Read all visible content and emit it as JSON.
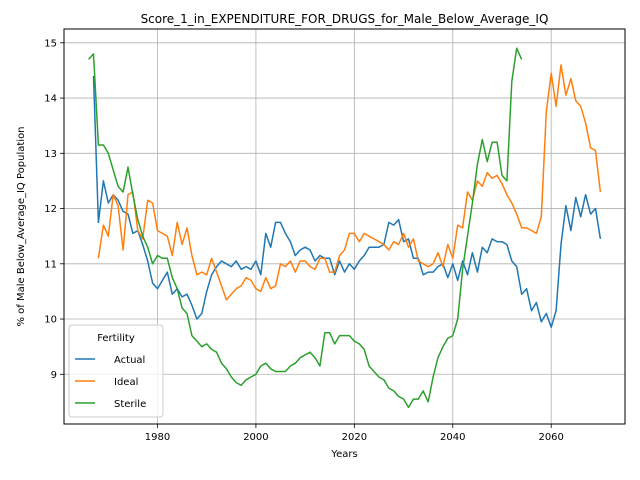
{
  "chart_data": {
    "type": "line",
    "title": "Score_1_in_EXPENDITURE_FOR_DRUGS_for_Male_Below_Average_IQ",
    "xlabel": "Years",
    "ylabel": "% of Male Below_Average_IQ Population",
    "xlim": [
      1961,
      2075
    ],
    "ylim": [
      8.1,
      15.25
    ],
    "xticks": [
      1980,
      2000,
      2020,
      2040,
      2060
    ],
    "yticks": [
      9,
      10,
      11,
      12,
      13,
      14,
      15
    ],
    "grid": true,
    "legend": {
      "title": "Fertility",
      "placement": "bottom-left"
    },
    "series": [
      {
        "name": "Actual",
        "color": "#1f77b4",
        "x": [
          1967,
          1968,
          1969,
          1970,
          1971,
          1972,
          1973,
          1974,
          1975,
          1976,
          1977,
          1978,
          1979,
          1980,
          1981,
          1982,
          1983,
          1984,
          1985,
          1986,
          1987,
          1988,
          1989,
          1990,
          1991,
          1992,
          1993,
          1994,
          1995,
          1996,
          1997,
          1998,
          1999,
          2000,
          2001,
          2002,
          2003,
          2004,
          2005,
          2006,
          2007,
          2008,
          2009,
          2010,
          2011,
          2012,
          2013,
          2014,
          2015,
          2016,
          2017,
          2018,
          2019,
          2020,
          2021,
          2022,
          2023,
          2024,
          2025,
          2026,
          2027,
          2028,
          2029,
          2030,
          2031,
          2032,
          2033,
          2034,
          2035,
          2036,
          2037,
          2038,
          2039,
          2040,
          2041,
          2042,
          2043,
          2044,
          2045,
          2046,
          2047,
          2048,
          2049,
          2050,
          2051,
          2052,
          2053,
          2054,
          2055,
          2056,
          2057,
          2058,
          2059,
          2060,
          2061,
          2062,
          2063,
          2064,
          2065,
          2066,
          2067,
          2068,
          2069,
          2070
        ],
        "y": [
          14.4,
          11.75,
          12.5,
          12.1,
          12.25,
          12.15,
          11.95,
          11.9,
          11.55,
          11.6,
          11.35,
          11.05,
          10.65,
          10.55,
          10.7,
          10.85,
          10.45,
          10.55,
          10.4,
          10.45,
          10.25,
          10.0,
          10.1,
          10.5,
          10.8,
          10.95,
          11.05,
          11.0,
          10.95,
          11.05,
          10.9,
          10.95,
          10.9,
          11.05,
          10.8,
          11.55,
          11.3,
          11.75,
          11.75,
          11.55,
          11.4,
          11.15,
          11.25,
          11.3,
          11.25,
          11.05,
          11.15,
          11.1,
          11.1,
          10.8,
          11.05,
          10.85,
          11.0,
          10.9,
          11.05,
          11.15,
          11.3,
          11.3,
          11.3,
          11.35,
          11.75,
          11.7,
          11.8,
          11.4,
          11.45,
          11.1,
          11.1,
          10.8,
          10.85,
          10.85,
          10.95,
          11.0,
          10.75,
          11.0,
          10.7,
          11.05,
          10.8,
          11.2,
          10.85,
          11.3,
          11.2,
          11.45,
          11.4,
          11.4,
          11.35,
          11.05,
          10.95,
          10.45,
          10.55,
          10.15,
          10.3,
          9.95,
          10.1,
          9.85,
          10.15,
          11.35,
          12.05,
          11.6,
          12.2,
          11.85,
          12.25,
          11.9,
          12.0,
          11.45
        ]
      },
      {
        "name": "Ideal",
        "color": "#ff7f0e",
        "x": [
          1968,
          1969,
          1970,
          1971,
          1972,
          1973,
          1974,
          1975,
          1976,
          1977,
          1978,
          1979,
          1980,
          1981,
          1982,
          1983,
          1984,
          1985,
          1986,
          1987,
          1988,
          1989,
          1990,
          1991,
          1992,
          1993,
          1994,
          1995,
          1996,
          1997,
          1998,
          1999,
          2000,
          2001,
          2002,
          2003,
          2004,
          2005,
          2006,
          2007,
          2008,
          2009,
          2010,
          2011,
          2012,
          2013,
          2014,
          2015,
          2016,
          2017,
          2018,
          2019,
          2020,
          2021,
          2022,
          2023,
          2024,
          2025,
          2026,
          2027,
          2028,
          2029,
          2030,
          2031,
          2032,
          2033,
          2034,
          2035,
          2036,
          2037,
          2038,
          2039,
          2040,
          2041,
          2042,
          2043,
          2044,
          2045,
          2046,
          2047,
          2048,
          2049,
          2050,
          2051,
          2052,
          2053,
          2054,
          2055,
          2056,
          2057,
          2058,
          2059,
          2060,
          2061,
          2062,
          2063,
          2064,
          2065,
          2066,
          2067,
          2068,
          2069,
          2070
        ],
        "y": [
          11.1,
          11.7,
          11.5,
          12.25,
          12.05,
          11.25,
          12.25,
          12.3,
          11.6,
          11.45,
          12.15,
          12.1,
          11.6,
          11.55,
          11.5,
          11.15,
          11.75,
          11.35,
          11.65,
          11.15,
          10.8,
          10.85,
          10.8,
          11.1,
          10.85,
          10.6,
          10.35,
          10.45,
          10.55,
          10.6,
          10.75,
          10.7,
          10.55,
          10.5,
          10.75,
          10.55,
          10.6,
          11.0,
          10.95,
          11.05,
          10.85,
          11.05,
          11.05,
          10.95,
          10.9,
          11.1,
          11.1,
          10.85,
          10.85,
          11.15,
          11.25,
          11.55,
          11.55,
          11.4,
          11.55,
          11.5,
          11.45,
          11.4,
          11.35,
          11.25,
          11.4,
          11.35,
          11.55,
          11.3,
          11.45,
          11.05,
          11.0,
          10.95,
          11.0,
          11.2,
          10.95,
          11.35,
          11.1,
          11.7,
          11.65,
          12.3,
          12.15,
          12.5,
          12.4,
          12.65,
          12.55,
          12.6,
          12.45,
          12.25,
          12.1,
          11.9,
          11.65,
          11.65,
          11.6,
          11.55,
          11.85,
          13.75,
          14.45,
          13.85,
          14.6,
          14.05,
          14.35,
          13.95,
          13.85,
          13.55,
          13.1,
          13.05,
          12.3
        ]
      },
      {
        "name": "Sterile",
        "color": "#2ca02c",
        "x": [
          1966,
          1967,
          1968,
          1969,
          1970,
          1971,
          1972,
          1973,
          1974,
          1975,
          1976,
          1977,
          1978,
          1979,
          1980,
          1981,
          1982,
          1983,
          1984,
          1985,
          1986,
          1987,
          1988,
          1989,
          1990,
          1991,
          1992,
          1993,
          1994,
          1995,
          1996,
          1997,
          1998,
          1999,
          2000,
          2001,
          2002,
          2003,
          2004,
          2005,
          2006,
          2007,
          2008,
          2009,
          2010,
          2011,
          2012,
          2013,
          2014,
          2015,
          2016,
          2017,
          2018,
          2019,
          2020,
          2021,
          2022,
          2023,
          2024,
          2025,
          2026,
          2027,
          2028,
          2029,
          2030,
          2031,
          2032,
          2033,
          2034,
          2035,
          2036,
          2037,
          2038,
          2039,
          2040,
          2041,
          2042,
          2043,
          2044,
          2045,
          2046,
          2047,
          2048,
          2049,
          2050,
          2051,
          2052,
          2053,
          2054
        ],
        "y": [
          14.7,
          14.8,
          13.15,
          13.15,
          13.0,
          12.7,
          12.4,
          12.3,
          12.75,
          12.25,
          11.8,
          11.5,
          11.3,
          11.0,
          11.15,
          11.1,
          11.1,
          10.75,
          10.55,
          10.2,
          10.1,
          9.7,
          9.6,
          9.5,
          9.55,
          9.45,
          9.4,
          9.2,
          9.1,
          8.95,
          8.85,
          8.8,
          8.9,
          8.95,
          9.0,
          9.15,
          9.2,
          9.1,
          9.05,
          9.05,
          9.05,
          9.15,
          9.2,
          9.3,
          9.35,
          9.4,
          9.3,
          9.15,
          9.75,
          9.75,
          9.55,
          9.7,
          9.7,
          9.7,
          9.6,
          9.55,
          9.45,
          9.15,
          9.05,
          8.95,
          8.9,
          8.75,
          8.7,
          8.6,
          8.55,
          8.4,
          8.55,
          8.55,
          8.7,
          8.5,
          8.95,
          9.3,
          9.5,
          9.65,
          9.7,
          10.0,
          10.9,
          11.5,
          12.1,
          12.8,
          13.25,
          12.85,
          13.2,
          13.2,
          12.6,
          12.5,
          14.3,
          14.9,
          14.7
        ]
      }
    ]
  }
}
